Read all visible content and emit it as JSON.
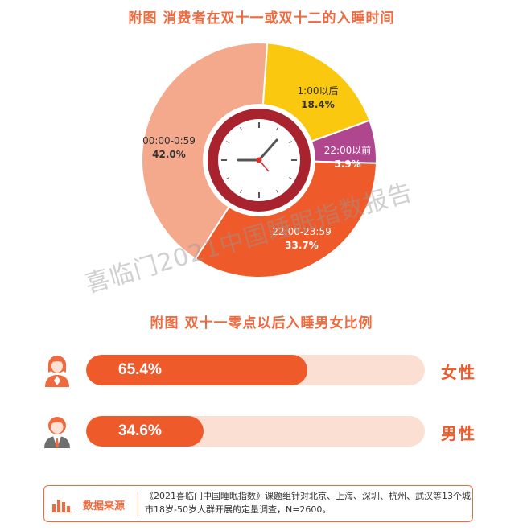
{
  "colors": {
    "accent": "#ef6a3e",
    "bar_fill": "#ef5a2a",
    "bar_track": "#fbdfd3",
    "clock_ring": "#a8232e"
  },
  "watermark": "喜临门2021中国睡眠指数报告",
  "chart_data": [
    {
      "type": "pie",
      "title": "附图  消费者在双十一或双十二的入睡时间",
      "slices": [
        {
          "label": "1:00以后",
          "value": 18.4,
          "value_label": "18.4%",
          "color": "#fac80f"
        },
        {
          "label": "22:00以前",
          "value": 5.9,
          "value_label": "5.9%",
          "color": "#b0478e"
        },
        {
          "label": "22:00-23:59",
          "value": 33.7,
          "value_label": "33.7%",
          "color": "#ef5a2a"
        },
        {
          "label": "00:00-0:59",
          "value": 42.0,
          "value_label": "42.0%",
          "color": "#f4a98c"
        }
      ],
      "center_icon": "clock-icon"
    },
    {
      "type": "bar",
      "title": "附图  双十一零点以后入睡男女比例",
      "categories": [
        "女性",
        "男性"
      ],
      "values": [
        65.4,
        34.6
      ],
      "value_labels": [
        "65.4%",
        "34.6%"
      ],
      "ylim": [
        0,
        100
      ],
      "icons": [
        "female-person-icon",
        "male-person-icon"
      ]
    }
  ],
  "source": {
    "label": "数据来源",
    "icon": "bar-chart-icon",
    "text": "《2021喜临门中国睡眠指数》课题组针对北京、上海、深圳、杭州、武汉等13个城市18岁-50岁人群开展的定量调查，N=2600。"
  }
}
